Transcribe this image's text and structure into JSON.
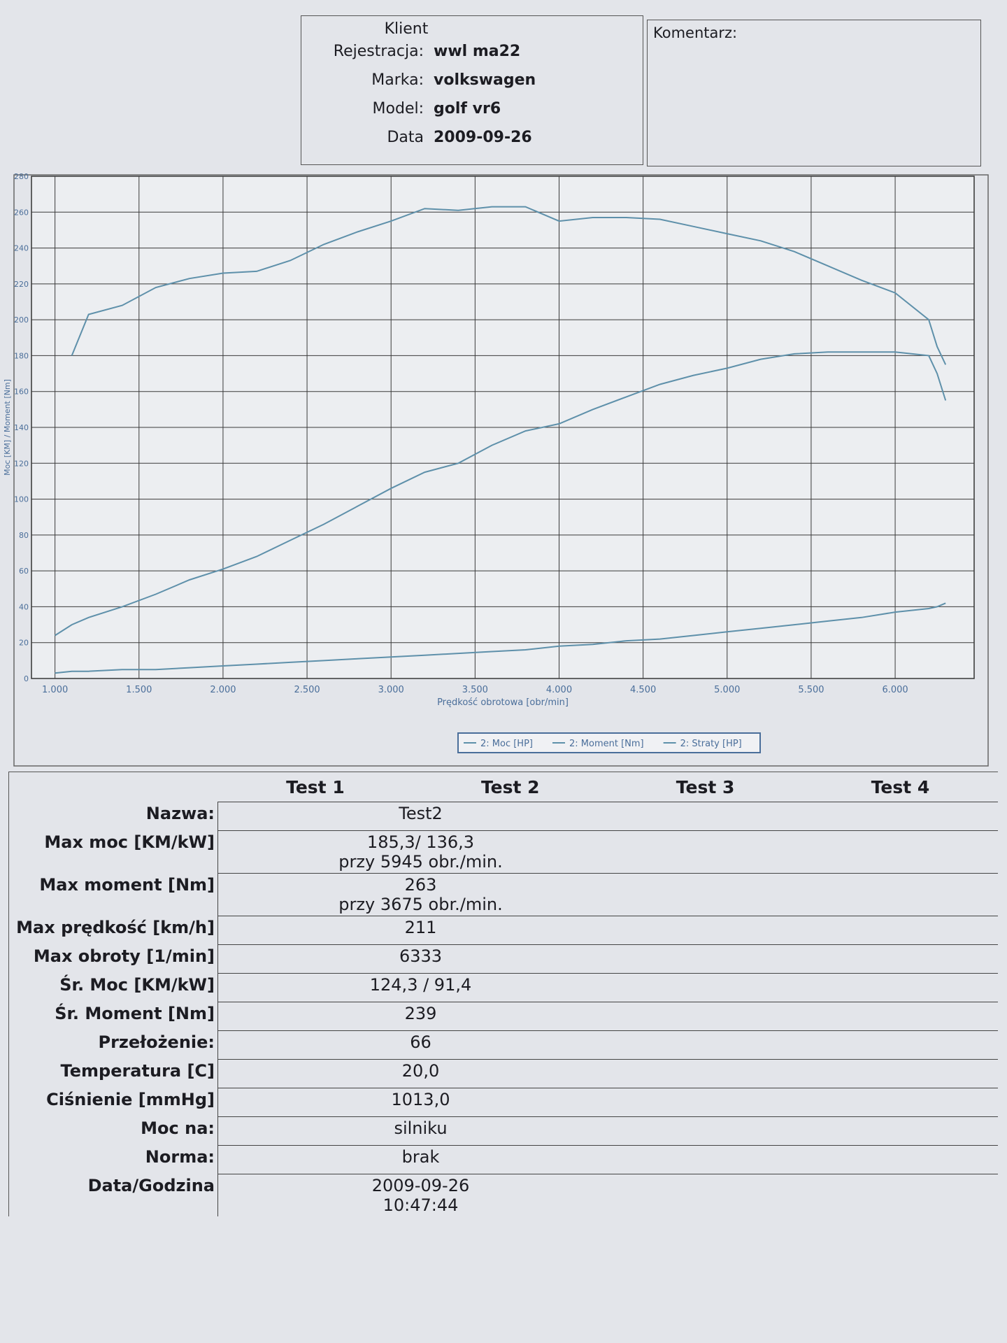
{
  "header": {
    "title": "Klient",
    "fields": [
      {
        "label": "Rejestracja:",
        "value": "wwl ma22"
      },
      {
        "label": "Marka:",
        "value": "volkswagen"
      },
      {
        "label": "Model:",
        "value": "golf vr6"
      },
      {
        "label": "Data",
        "value": "2009-09-26"
      }
    ],
    "comment_label": "Komentarz:"
  },
  "chart_data": {
    "type": "line",
    "xlabel": "Prędkość obrotowa [obr/min]",
    "ylabel": "Moc [KM] / Moment [Nm]",
    "x": [
      1000,
      1100,
      1200,
      1400,
      1600,
      1800,
      2000,
      2200,
      2400,
      2600,
      2800,
      3000,
      3200,
      3400,
      3600,
      3800,
      4000,
      4200,
      4400,
      4600,
      4800,
      5000,
      5200,
      5400,
      5600,
      5800,
      6000,
      6200,
      6250,
      6300
    ],
    "series": [
      {
        "name": "2: Moc [HP]",
        "color": "#5e90aa",
        "values": [
          24,
          30,
          34,
          40,
          47,
          55,
          61,
          68,
          77,
          86,
          96,
          106,
          115,
          120,
          130,
          138,
          142,
          150,
          157,
          164,
          169,
          173,
          178,
          181,
          182,
          182,
          182,
          180,
          170,
          155
        ]
      },
      {
        "name": "2: Moment [Nm]",
        "color": "#5e90aa",
        "values": [
          null,
          180,
          203,
          208,
          218,
          223,
          226,
          227,
          233,
          242,
          249,
          255,
          262,
          261,
          263,
          263,
          255,
          257,
          257,
          256,
          252,
          248,
          244,
          238,
          230,
          222,
          215,
          200,
          185,
          175
        ]
      },
      {
        "name": "2: Straty [HP]",
        "color": "#5e90aa",
        "values": [
          3,
          4,
          4,
          5,
          5,
          6,
          7,
          8,
          9,
          10,
          11,
          12,
          13,
          14,
          15,
          16,
          18,
          19,
          21,
          22,
          24,
          26,
          28,
          30,
          32,
          34,
          37,
          39,
          40,
          42
        ]
      }
    ],
    "xlim": [
      860,
      6470
    ],
    "xticks": [
      {
        "value": 1000,
        "label": "1.000"
      },
      {
        "value": 1500,
        "label": "1.500"
      },
      {
        "value": 2000,
        "label": "2.000"
      },
      {
        "value": 2500,
        "label": "2.500"
      },
      {
        "value": 3000,
        "label": "3.000"
      },
      {
        "value": 3500,
        "label": "3.500"
      },
      {
        "value": 4000,
        "label": "4.000"
      },
      {
        "value": 4500,
        "label": "4.500"
      },
      {
        "value": 5000,
        "label": "5.000"
      },
      {
        "value": 5500,
        "label": "5.500"
      },
      {
        "value": 6000,
        "label": "6.000"
      }
    ],
    "ylim": [
      0,
      280
    ],
    "yticks": [
      0,
      20,
      40,
      60,
      80,
      100,
      120,
      140,
      160,
      180,
      200,
      220,
      240,
      260,
      280
    ],
    "grid": true
  },
  "table": {
    "columns": [
      "Test 1",
      "Test 2",
      "Test 3",
      "Test 4"
    ],
    "rows": [
      {
        "label": "Nazwa:",
        "lines": [
          "Test2"
        ]
      },
      {
        "label": "Max moc [KM/kW]",
        "lines": [
          "185,3/ 136,3",
          "przy 5945 obr./min."
        ]
      },
      {
        "label": "Max moment [Nm]",
        "lines": [
          "263",
          "przy 3675 obr./min."
        ]
      },
      {
        "label": "Max prędkość [km/h]",
        "lines": [
          "211"
        ]
      },
      {
        "label": "Max obroty [1/min]",
        "lines": [
          "6333"
        ]
      },
      {
        "label": "Śr. Moc [KM/kW]",
        "lines": [
          "124,3 / 91,4"
        ]
      },
      {
        "label": "Śr. Moment [Nm]",
        "lines": [
          "239"
        ]
      },
      {
        "label": "Przełożenie:",
        "lines": [
          "66"
        ]
      },
      {
        "label": "Temperatura [C]",
        "lines": [
          "20,0"
        ]
      },
      {
        "label": "Ciśnienie [mmHg]",
        "lines": [
          "1013,0"
        ]
      },
      {
        "label": "Moc na:",
        "lines": [
          "silniku"
        ]
      },
      {
        "label": "Norma:",
        "lines": [
          "brak"
        ]
      },
      {
        "label": "Data/Godzina",
        "lines": [
          "2009-09-26",
          "10:47:44"
        ]
      }
    ]
  }
}
